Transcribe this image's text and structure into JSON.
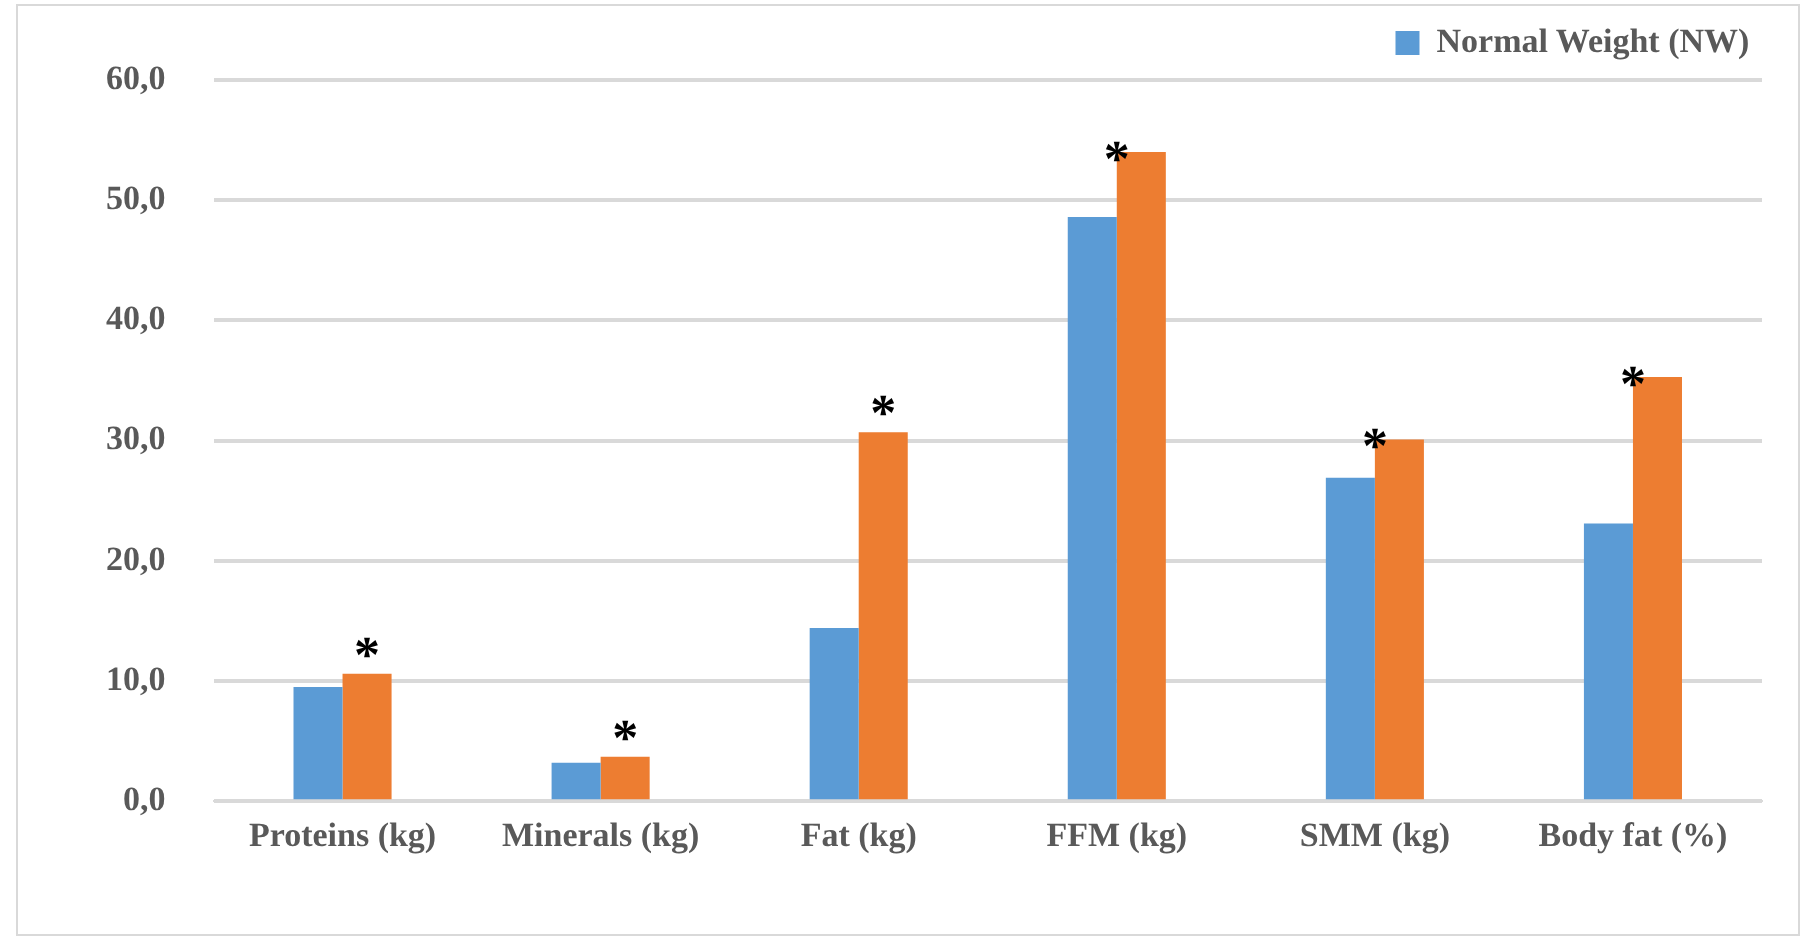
{
  "chart_data": {
    "type": "bar",
    "categories": [
      "Proteins (kg)",
      "Minerals (kg)",
      "Fat (kg)",
      "FFM (kg)",
      "SMM (kg)",
      "Body fat (%)"
    ],
    "series": [
      {
        "name": "Normal Weight (NW)",
        "color": "#5b9bd5",
        "values": [
          9.5,
          3.2,
          14.4,
          48.6,
          26.9,
          23.1
        ]
      },
      {
        "color": "#ed7d31",
        "values": [
          10.6,
          3.7,
          30.7,
          54.0,
          30.1,
          35.3
        ]
      }
    ],
    "ylim": [
      0,
      60
    ],
    "yticks": [
      {
        "value": 0,
        "label": "0,0"
      },
      {
        "value": 10,
        "label": "10,0"
      },
      {
        "value": 20,
        "label": "20,0"
      },
      {
        "value": 30,
        "label": "30,0"
      },
      {
        "value": 40,
        "label": "40,0"
      },
      {
        "value": 50,
        "label": "50,0"
      },
      {
        "value": 60,
        "label": "60,0"
      }
    ],
    "grid": "y",
    "legend": "top right",
    "annotations": [
      "*",
      "*",
      "*",
      "*",
      "*",
      "*"
    ]
  }
}
